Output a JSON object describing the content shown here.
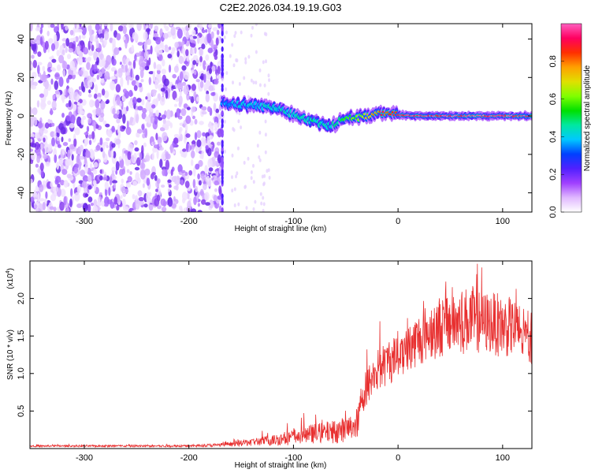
{
  "title": "C2E2.2026.034.19.19.G03",
  "chart_data": [
    {
      "type": "heatmap",
      "name": "spectrogram",
      "xlabel": "Height of straight line (km)",
      "ylabel": "Frequency (Hz)",
      "xlim": [
        -352,
        128
      ],
      "ylim": [
        -50,
        48
      ],
      "xticks": [
        -300,
        -200,
        -100,
        0,
        100
      ],
      "xtick_labels": [
        "-300",
        "-200",
        "-100",
        "0",
        "100"
      ],
      "yticks": [
        -40,
        -20,
        0,
        20,
        40
      ],
      "ytick_labels": [
        "-40",
        "-20",
        "0",
        "20",
        "40"
      ],
      "noise_region_end_km": -168,
      "ridge": {
        "description": "dominant spectral line (frequency vs height)",
        "x": [
          -168,
          -150,
          -130,
          -110,
          -95,
          -80,
          -70,
          -60,
          -50,
          -40,
          -30,
          -20,
          -10,
          0,
          20,
          50,
          80,
          110,
          128
        ],
        "y": [
          7,
          6,
          5,
          3,
          0,
          -3,
          -5,
          -4,
          -1,
          -1,
          0,
          1.5,
          1.5,
          0.5,
          0,
          0,
          0,
          0,
          0
        ],
        "amplitude": [
          0.32,
          0.38,
          0.4,
          0.42,
          0.44,
          0.45,
          0.4,
          0.45,
          0.55,
          0.6,
          0.7,
          0.8,
          0.85,
          0.9,
          0.95,
          0.95,
          0.95,
          0.95,
          0.95
        ]
      },
      "colorbar": {
        "label": "Normalized spectral amplitude",
        "range": [
          0,
          1
        ],
        "ticks": [
          0.0,
          0.2,
          0.4,
          0.6,
          0.8
        ],
        "tick_labels": [
          "0.0",
          "0.2",
          "0.4",
          "0.6",
          "0.8"
        ],
        "stops": [
          "#ffffff",
          "#e0b8ff",
          "#a040ff",
          "#5020ff",
          "#0040ff",
          "#00c8ff",
          "#00e8a0",
          "#00e000",
          "#80ff00",
          "#e0e000",
          "#ffa000",
          "#ff3000",
          "#ff0060",
          "#ff60c0"
        ]
      }
    },
    {
      "type": "line",
      "name": "snr",
      "xlabel": "Height of straight line (km)",
      "ylabel": "SNR (10 * v/v)",
      "y_multiplier": "(x10",
      "y_multiplier_exp": "4",
      "y_multiplier_close": ")",
      "xlim": [
        -352,
        128
      ],
      "ylim": [
        0,
        25000
      ],
      "xticks": [
        -300,
        -200,
        -100,
        0,
        100
      ],
      "xtick_labels": [
        "-300",
        "-200",
        "-100",
        "0",
        "100"
      ],
      "yticks": [
        5000,
        10000,
        15000,
        20000
      ],
      "ytick_labels": [
        "0.5",
        "1.0",
        "1.5",
        "2.0"
      ],
      "color": "#e83030",
      "series": [
        {
          "name": "SNR",
          "description": "noisy envelope: base level and fluctuation amplitude vs height",
          "x": [
            -352,
            -200,
            -170,
            -150,
            -120,
            -100,
            -80,
            -60,
            -45,
            -38,
            -35,
            -30,
            -25,
            -20,
            -10,
            0,
            10,
            20,
            30,
            40,
            50,
            60,
            70,
            80,
            90,
            100,
            110,
            120,
            128
          ],
          "base": [
            300,
            300,
            400,
            600,
            900,
            1200,
            1600,
            1800,
            2200,
            3000,
            6000,
            7500,
            8500,
            9500,
            10500,
            11500,
            12500,
            13500,
            14500,
            15000,
            15500,
            15500,
            16000,
            15500,
            15500,
            15000,
            15000,
            14000,
            13500
          ],
          "spread": [
            200,
            250,
            400,
            700,
            1200,
            1800,
            2200,
            2600,
            3000,
            3500,
            4000,
            4200,
            4500,
            4800,
            5000,
            5200,
            5500,
            6000,
            6500,
            7000,
            7200,
            7500,
            7500,
            7000,
            7000,
            7000,
            6500,
            6000,
            6000
          ]
        }
      ]
    }
  ]
}
